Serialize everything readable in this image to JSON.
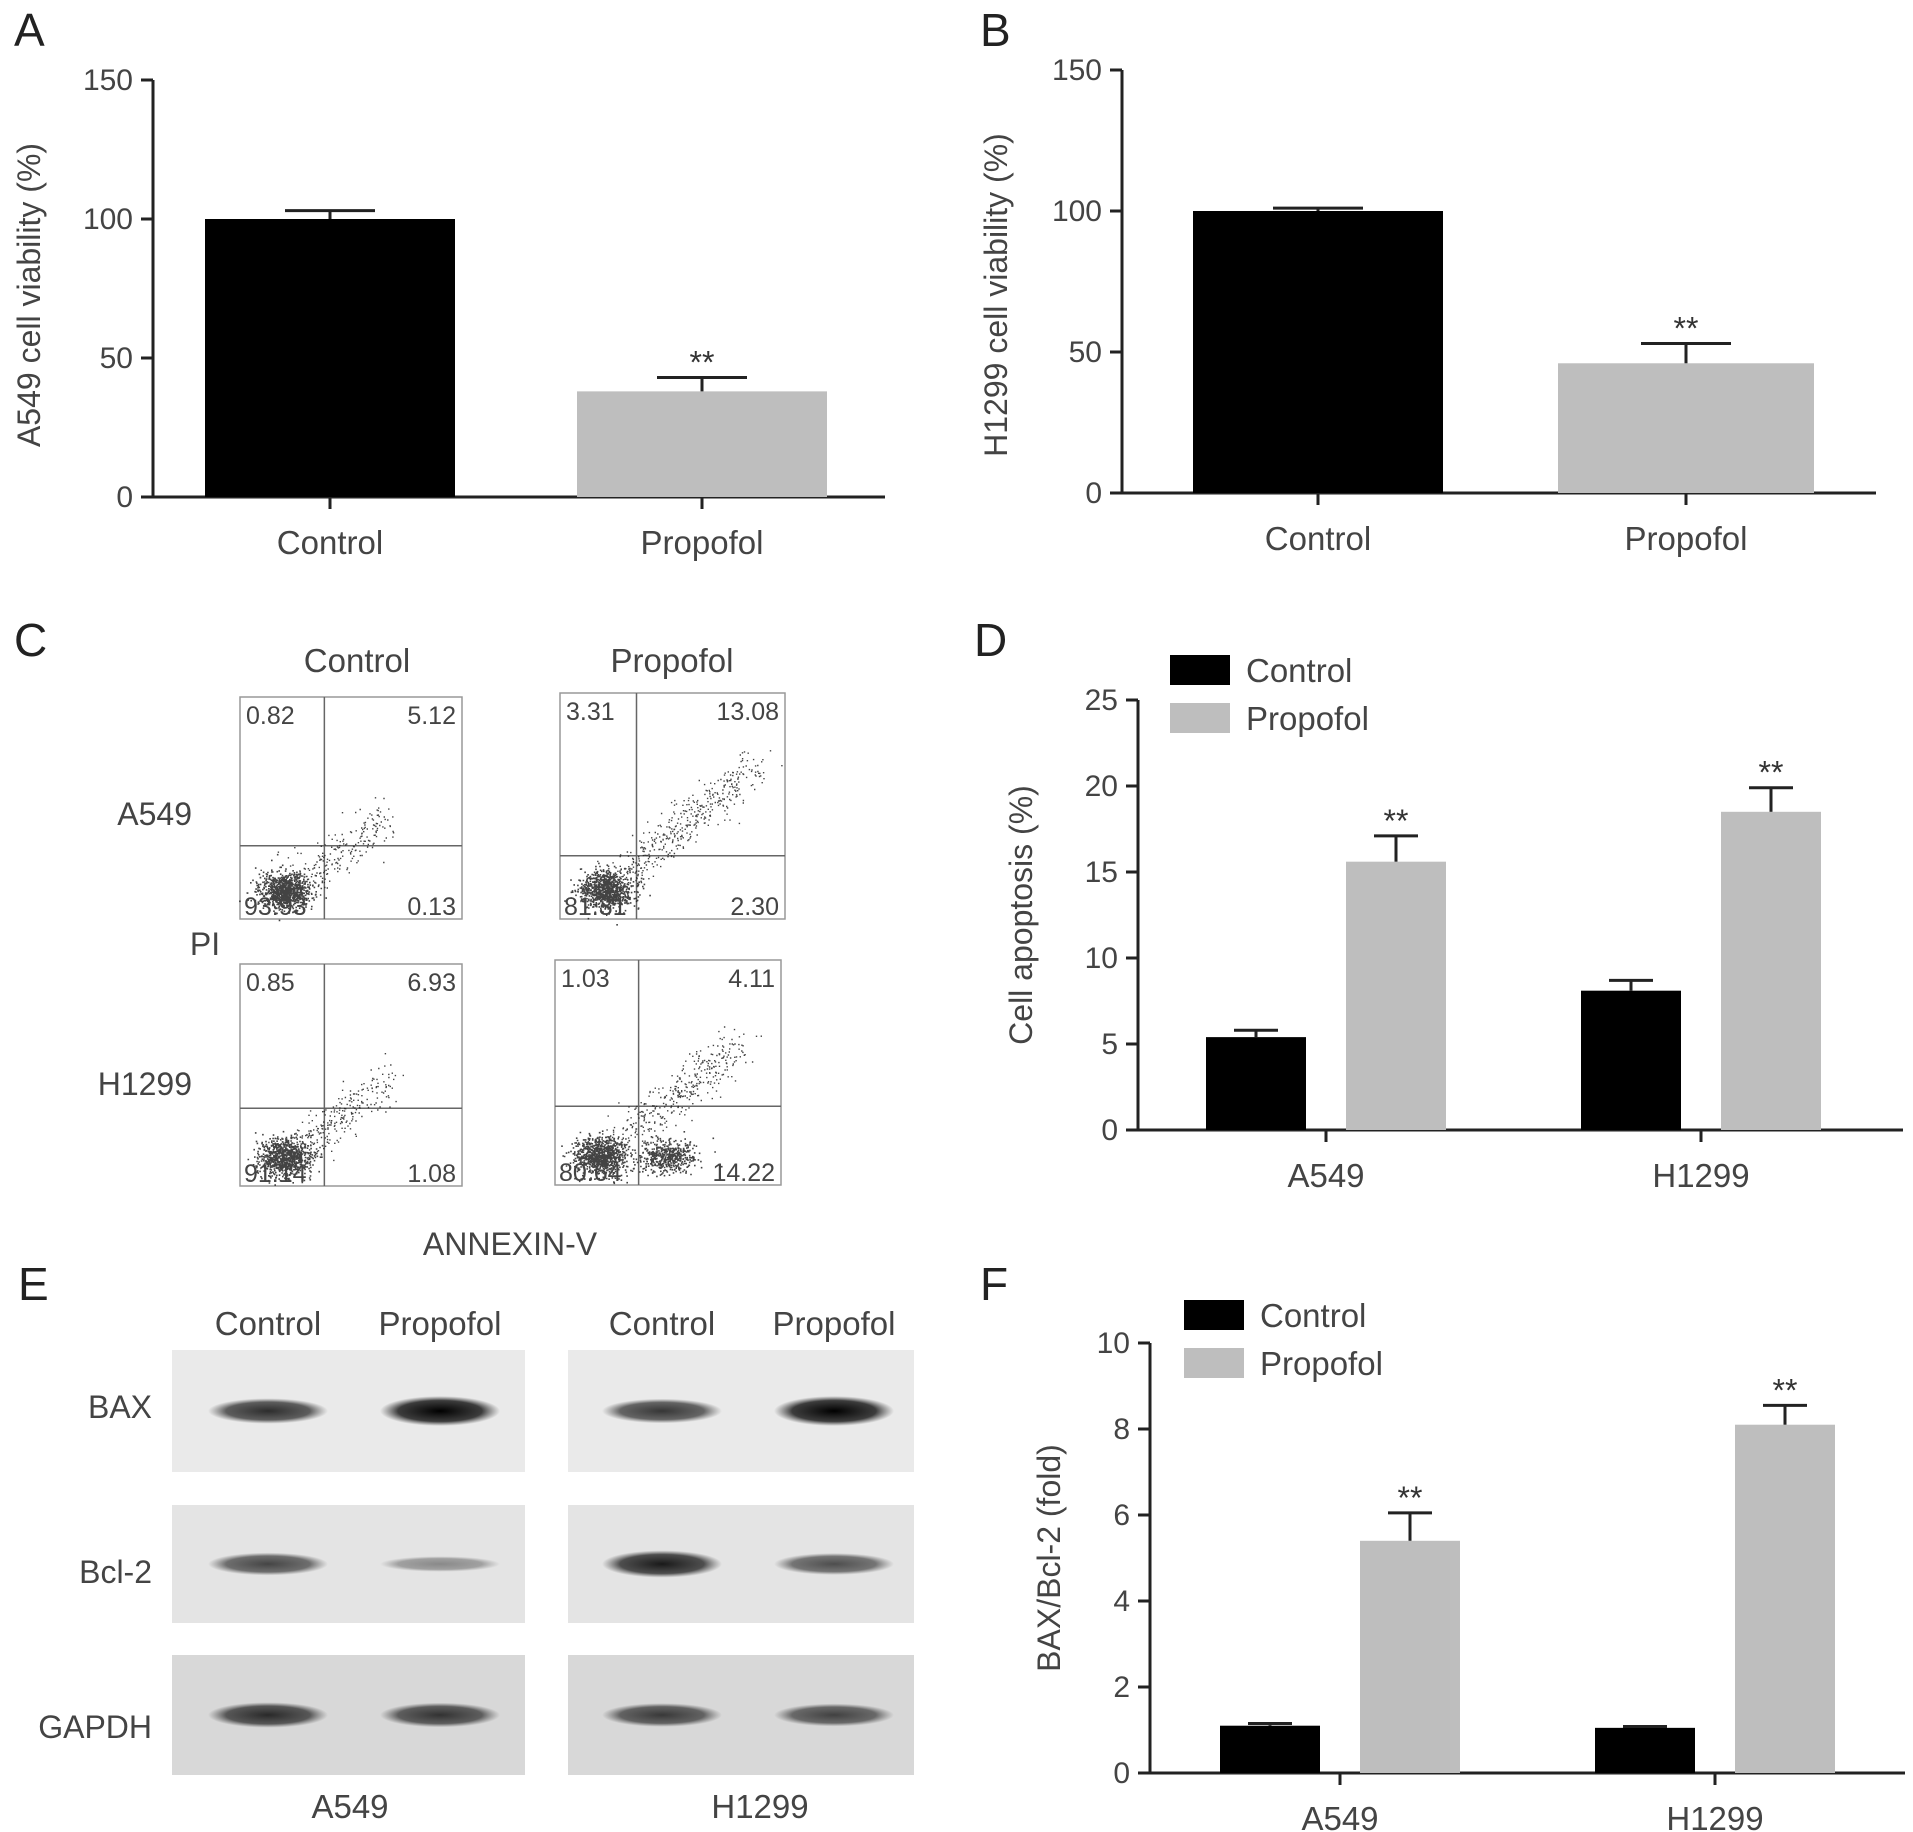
{
  "panels": {
    "A": "A",
    "B": "B",
    "C": "C",
    "D": "D",
    "E": "E",
    "F": "F"
  },
  "colors": {
    "control": "#000000",
    "propofol": "#bebebe",
    "axis": "#222222"
  },
  "chart_data": [
    {
      "panel": "A",
      "type": "bar",
      "categories": [
        "Control",
        "Propofol"
      ],
      "values": [
        100,
        38
      ],
      "errors": [
        3,
        5
      ],
      "significance": [
        "",
        "**"
      ],
      "ylabel": "A549 cell viability (%)",
      "ylim": [
        0,
        150
      ],
      "yticks": [
        0,
        50,
        100,
        150
      ],
      "colors": [
        "#000000",
        "#bebebe"
      ]
    },
    {
      "panel": "B",
      "type": "bar",
      "categories": [
        "Control",
        "Propofol"
      ],
      "values": [
        100,
        46
      ],
      "errors": [
        1,
        7
      ],
      "significance": [
        "",
        "**"
      ],
      "ylabel": "H1299 cell viability (%)",
      "ylim": [
        0,
        150
      ],
      "yticks": [
        0,
        50,
        100,
        150
      ],
      "colors": [
        "#000000",
        "#bebebe"
      ]
    },
    {
      "panel": "D",
      "type": "bar",
      "categories": [
        "A549",
        "H1299"
      ],
      "series": [
        {
          "name": "Control",
          "values": [
            5.4,
            8.1
          ],
          "errors": [
            0.4,
            0.6
          ],
          "significance": [
            "",
            ""
          ]
        },
        {
          "name": "Propofol",
          "values": [
            15.6,
            18.5
          ],
          "errors": [
            1.5,
            1.4
          ],
          "significance": [
            "**",
            "**"
          ]
        }
      ],
      "ylabel": "Cell apoptosis (%)",
      "ylim": [
        0,
        25
      ],
      "yticks": [
        0,
        5,
        10,
        15,
        20,
        25
      ],
      "legend": "top-left"
    },
    {
      "panel": "F",
      "type": "bar",
      "categories": [
        "A549",
        "H1299"
      ],
      "series": [
        {
          "name": "Control",
          "values": [
            1.1,
            1.05
          ],
          "errors": [
            0.05,
            0.03
          ],
          "significance": [
            "",
            ""
          ]
        },
        {
          "name": "Propofol",
          "values": [
            5.4,
            8.1
          ],
          "errors": [
            0.65,
            0.45
          ],
          "significance": [
            "**",
            "**"
          ]
        }
      ],
      "ylabel": "BAX/Bcl-2 (fold)",
      "ylim": [
        0,
        10
      ],
      "yticks": [
        0,
        2,
        4,
        6,
        8,
        10
      ],
      "legend": "top-left"
    }
  ],
  "flow": {
    "columns": [
      "Control",
      "Propofol"
    ],
    "rows": [
      "A549",
      "H1299"
    ],
    "y_label": "PI",
    "x_label": "ANNEXIN-V",
    "quadrants": {
      "A549_Control": {
        "ul": "0.82",
        "ur": "5.12",
        "ll": "93.93",
        "lr": "0.13"
      },
      "A549_Propofol": {
        "ul": "3.31",
        "ur": "13.08",
        "ll": "81.31",
        "lr": "2.30"
      },
      "H1299_Control": {
        "ul": "0.85",
        "ur": "6.93",
        "ll": "91.14",
        "lr": "1.08"
      },
      "H1299_Propofol": {
        "ul": "1.03",
        "ur": "4.11",
        "ll": "80.64",
        "lr": "14.22"
      }
    }
  },
  "western": {
    "columns": [
      "Control",
      "Propofol",
      "Control",
      "Propofol"
    ],
    "rows": [
      "BAX",
      "Bcl-2",
      "GAPDH"
    ],
    "cell_lines": [
      "A549",
      "H1299"
    ],
    "band_intensity": {
      "BAX": [
        0.75,
        1.0,
        0.7,
        1.0
      ],
      "Bcl-2": [
        0.6,
        0.2,
        0.85,
        0.55
      ],
      "GAPDH": [
        0.75,
        0.7,
        0.65,
        0.6
      ]
    }
  }
}
